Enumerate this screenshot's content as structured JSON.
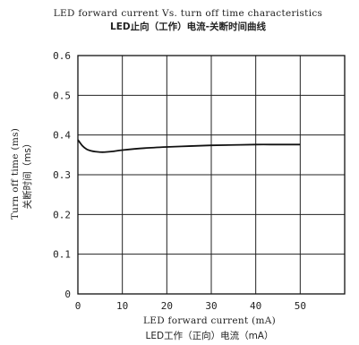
{
  "chart_data": {
    "type": "line",
    "title": "LED forward current Vs. turn off time characteristics",
    "subtitle": "LED止向（工作）电流-关断时间曲线",
    "xlabel": "LED forward current (mA)",
    "xlabel_cn": "LED工作（正向）电流（mA）",
    "ylabel": "Turn off time (ms)",
    "ylabel_cn": "关断时间（ms）",
    "xlim": [
      0,
      60
    ],
    "ylim": [
      0,
      0.6
    ],
    "x_ticks": [
      "0",
      "10",
      "20",
      "30",
      "40",
      "50"
    ],
    "y_ticks": [
      "0",
      "0.1",
      "0.2",
      "0.3",
      "0.4",
      "0.5",
      "0.6"
    ],
    "grid": true,
    "series": [
      {
        "x": [
          0,
          1,
          2,
          3,
          4,
          5,
          6,
          8,
          10,
          15,
          20,
          25,
          30,
          35,
          40,
          45,
          50
        ],
        "y": [
          0.388,
          0.373,
          0.364,
          0.36,
          0.358,
          0.357,
          0.357,
          0.359,
          0.362,
          0.367,
          0.37,
          0.372,
          0.374,
          0.375,
          0.376,
          0.376,
          0.376
        ]
      }
    ]
  }
}
